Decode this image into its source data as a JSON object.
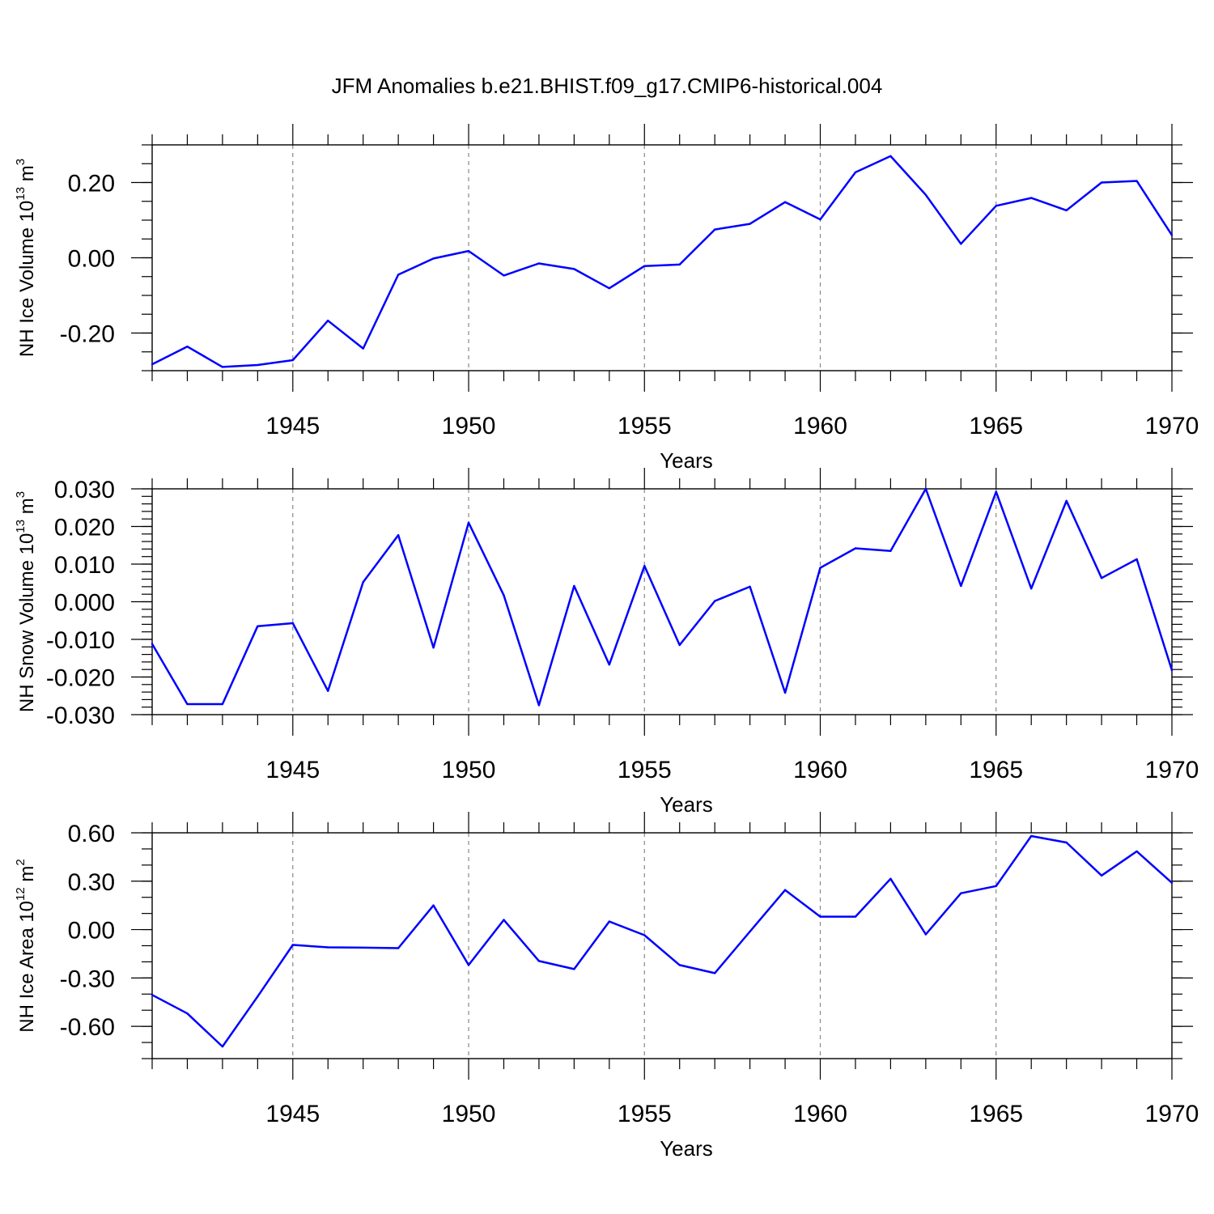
{
  "figure": {
    "title": "JFM Anomalies b.e21.BHIST.f09_g17.CMIP6-historical.004"
  },
  "style": {
    "line_color": "#0000ff",
    "axis_color": "#000000",
    "grid_color": "#888888"
  },
  "chart_data": [
    {
      "type": "line",
      "ylabel": "NH Ice Volume 10^13 m^3",
      "ylabel_parts": {
        "base": "NH Ice Volume 10",
        "exp1": "13",
        "mid": " m",
        "exp2": "3"
      },
      "xlabel": "Years",
      "xlim": [
        1941,
        1970
      ],
      "ylim": [
        -0.3,
        0.3
      ],
      "xticks": [
        1945,
        1950,
        1955,
        1960,
        1965,
        1970
      ],
      "xtick_labels": [
        "1945",
        "1950",
        "1955",
        "1960",
        "1965",
        "1970"
      ],
      "yticks": [
        -0.2,
        0.0,
        0.2
      ],
      "ytick_labels": [
        "-0.20",
        "0.00",
        "0.20"
      ],
      "y_minor_step": 0.05,
      "grid_x": true,
      "x": [
        1941,
        1942,
        1943,
        1944,
        1945,
        1946,
        1947,
        1948,
        1949,
        1950,
        1951,
        1952,
        1953,
        1954,
        1955,
        1956,
        1957,
        1958,
        1959,
        1960,
        1961,
        1962,
        1963,
        1964,
        1965,
        1966,
        1967,
        1968,
        1969,
        1970
      ],
      "values": [
        -0.283,
        -0.236,
        -0.29,
        -0.285,
        -0.272,
        -0.167,
        -0.241,
        -0.045,
        -0.002,
        0.018,
        -0.047,
        -0.015,
        -0.03,
        -0.081,
        -0.022,
        -0.018,
        0.075,
        0.09,
        0.148,
        0.102,
        0.227,
        0.27,
        0.167,
        0.037,
        0.138,
        0.159,
        0.126,
        0.2,
        0.204,
        0.06
      ]
    },
    {
      "type": "line",
      "ylabel": "NH Snow Volume 10^13 m^3",
      "ylabel_parts": {
        "base": "NH Snow Volume 10",
        "exp1": "13",
        "mid": " m",
        "exp2": "3"
      },
      "xlabel": "Years",
      "xlim": [
        1941,
        1970
      ],
      "ylim": [
        -0.03,
        0.03
      ],
      "xticks": [
        1945,
        1950,
        1955,
        1960,
        1965,
        1970
      ],
      "xtick_labels": [
        "1945",
        "1950",
        "1955",
        "1960",
        "1965",
        "1970"
      ],
      "yticks": [
        -0.03,
        -0.02,
        -0.01,
        0.0,
        0.01,
        0.02,
        0.03
      ],
      "ytick_labels": [
        "-0.030",
        "-0.020",
        "-0.010",
        "0.000",
        "0.010",
        "0.020",
        "0.030"
      ],
      "y_minor_step": 0.002,
      "grid_x": true,
      "x": [
        1941,
        1942,
        1943,
        1944,
        1945,
        1946,
        1947,
        1948,
        1949,
        1950,
        1951,
        1952,
        1953,
        1954,
        1955,
        1956,
        1957,
        1958,
        1959,
        1960,
        1961,
        1962,
        1963,
        1964,
        1965,
        1966,
        1967,
        1968,
        1969,
        1970
      ],
      "values": [
        -0.0112,
        -0.0272,
        -0.0272,
        -0.0065,
        -0.0057,
        -0.0237,
        0.0052,
        0.0177,
        -0.0122,
        0.021,
        0.0017,
        -0.0275,
        0.0042,
        -0.0167,
        0.0095,
        -0.0115,
        0.0002,
        0.004,
        -0.0242,
        0.009,
        0.0142,
        0.0135,
        0.03,
        0.0042,
        0.0292,
        0.0035,
        0.0268,
        0.0063,
        0.0113,
        -0.0182
      ]
    },
    {
      "type": "line",
      "ylabel": "NH Ice Area 10^12 m^2",
      "ylabel_parts": {
        "base": "NH Ice Area 10",
        "exp1": "12",
        "mid": " m",
        "exp2": "2"
      },
      "xlabel": "Years",
      "xlim": [
        1941,
        1970
      ],
      "ylim": [
        -0.8,
        0.6
      ],
      "xticks": [
        1945,
        1950,
        1955,
        1960,
        1965,
        1970
      ],
      "xtick_labels": [
        "1945",
        "1950",
        "1955",
        "1960",
        "1965",
        "1970"
      ],
      "yticks": [
        -0.6,
        -0.3,
        0.0,
        0.3,
        0.6
      ],
      "ytick_labels": [
        "-0.60",
        "-0.30",
        "0.00",
        "0.30",
        "0.60"
      ],
      "y_minor_step": 0.1,
      "grid_x": true,
      "x": [
        1941,
        1942,
        1943,
        1944,
        1945,
        1946,
        1947,
        1948,
        1949,
        1950,
        1951,
        1952,
        1953,
        1954,
        1955,
        1956,
        1957,
        1958,
        1959,
        1960,
        1961,
        1962,
        1963,
        1964,
        1965,
        1966,
        1967,
        1968,
        1969,
        1970
      ],
      "values": [
        -0.405,
        -0.52,
        -0.725,
        -0.415,
        -0.095,
        -0.11,
        -0.112,
        -0.115,
        0.15,
        -0.22,
        0.06,
        -0.195,
        -0.245,
        0.05,
        -0.035,
        -0.22,
        -0.27,
        -0.012,
        0.245,
        0.08,
        0.08,
        0.315,
        -0.03,
        0.225,
        0.27,
        0.58,
        0.54,
        0.335,
        0.485,
        0.29
      ]
    }
  ]
}
